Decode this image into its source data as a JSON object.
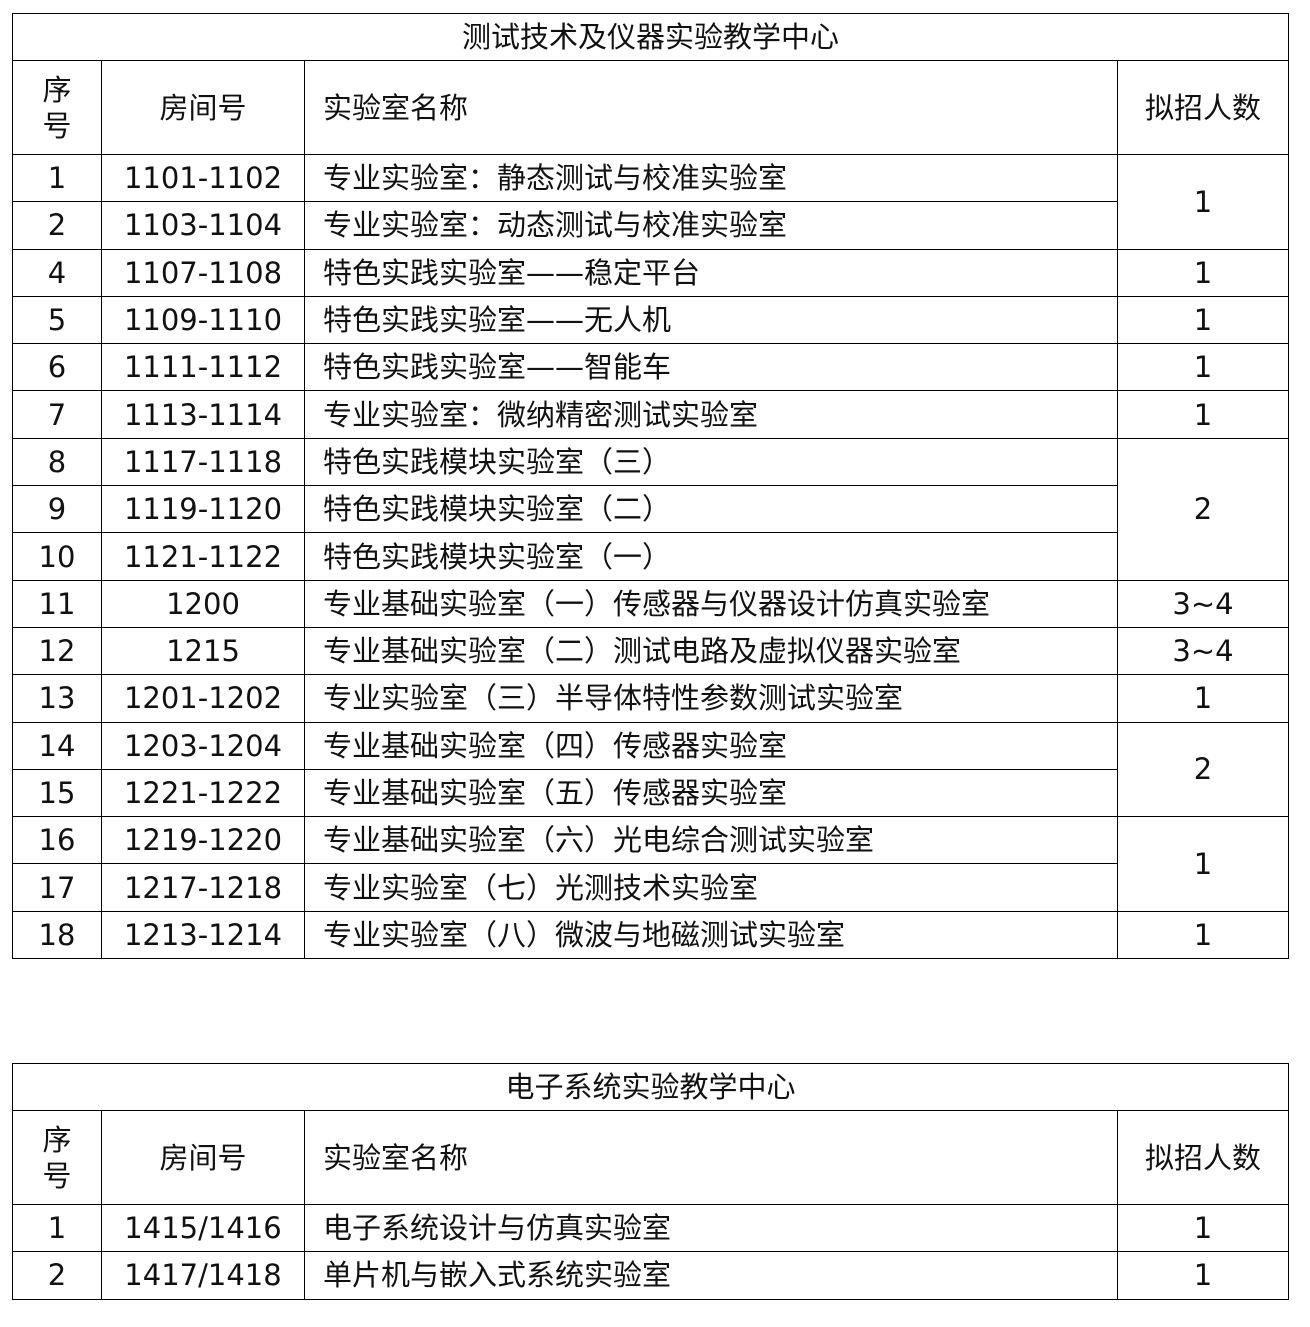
{
  "tables": [
    {
      "title": "测试技术及仪器实验教学中心",
      "headers": {
        "seq": "序号",
        "room": "房间号",
        "name": "实验室名称",
        "count": "拟招人数"
      },
      "rows": [
        {
          "seq": "1",
          "room": "1101-1102",
          "name": "专业实验室：静态测试与校准实验室",
          "count": "1",
          "span": 2
        },
        {
          "seq": "2",
          "room": "1103-1104",
          "name": "专业实验室：动态测试与校准实验室"
        },
        {
          "seq": "4",
          "room": "1107-1108",
          "name": "特色实践实验室——稳定平台",
          "count": "1",
          "span": 1
        },
        {
          "seq": "5",
          "room": "1109-1110",
          "name": "特色实践实验室——无人机",
          "count": "1",
          "span": 1
        },
        {
          "seq": "6",
          "room": "1111-1112",
          "name": "特色实践实验室——智能车",
          "count": "1",
          "span": 1
        },
        {
          "seq": "7",
          "room": "1113-1114",
          "name": "专业实验室：微纳精密测试实验室",
          "count": "1",
          "span": 1
        },
        {
          "seq": "8",
          "room": "1117-1118",
          "name": "特色实践模块实验室（三）",
          "count": "2",
          "span": 3
        },
        {
          "seq": "9",
          "room": "1119-1120",
          "name": "特色实践模块实验室（二）"
        },
        {
          "seq": "10",
          "room": "1121-1122",
          "name": "特色实践模块实验室（一）"
        },
        {
          "seq": "11",
          "room": "1200",
          "name": "专业基础实验室（一）传感器与仪器设计仿真实验室",
          "count": "3~4",
          "span": 1
        },
        {
          "seq": "12",
          "room": "1215",
          "name": "专业基础实验室（二）测试电路及虚拟仪器实验室",
          "count": "3~4",
          "span": 1
        },
        {
          "seq": "13",
          "room": "1201-1202",
          "name": "专业实验室（三）半导体特性参数测试实验室",
          "count": "1",
          "span": 1
        },
        {
          "seq": "14",
          "room": "1203-1204",
          "name": "专业基础实验室（四）传感器实验室",
          "count": "2",
          "span": 2
        },
        {
          "seq": "15",
          "room": "1221-1222",
          "name": "专业基础实验室（五）传感器实验室"
        },
        {
          "seq": "16",
          "room": "1219-1220",
          "name": "专业基础实验室（六）光电综合测试实验室",
          "count": "1",
          "span": 2
        },
        {
          "seq": "17",
          "room": "1217-1218",
          "name": "专业实验室（七）光测技术实验室"
        },
        {
          "seq": "18",
          "room": "1213-1214",
          "name": "专业实验室（八）微波与地磁测试实验室",
          "count": "1",
          "span": 1
        }
      ]
    },
    {
      "title": "电子系统实验教学中心",
      "headers": {
        "seq": "序号",
        "room": "房间号",
        "name": "实验室名称",
        "count": "拟招人数"
      },
      "rows": [
        {
          "seq": "1",
          "room": "1415/1416",
          "name": "电子系统设计与仿真实验室",
          "count": "1",
          "span": 1
        },
        {
          "seq": "2",
          "room": "1417/1418",
          "name": "单片机与嵌入式系统实验室",
          "count": "1",
          "span": 1
        }
      ]
    }
  ]
}
